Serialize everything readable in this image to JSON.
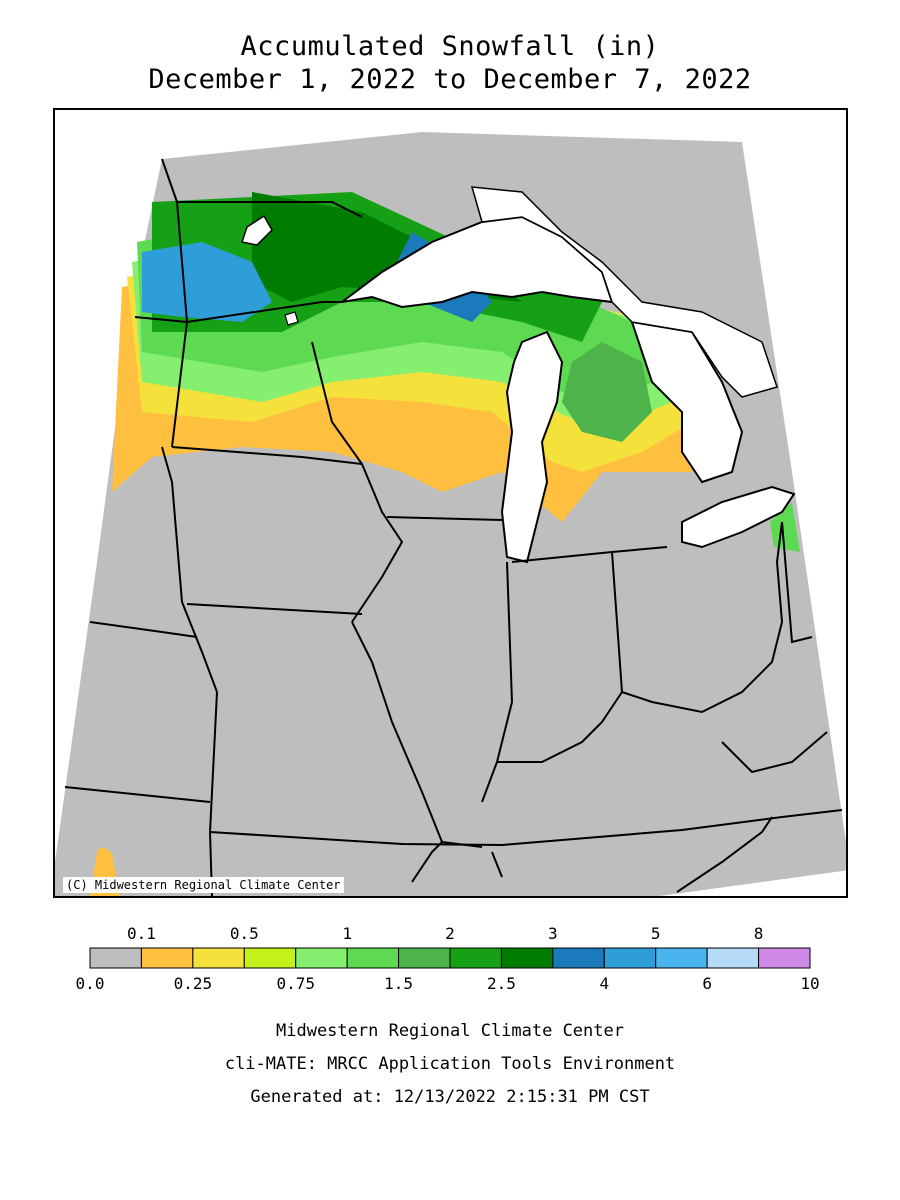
{
  "title_line1": "Accumulated Snowfall (in)",
  "title_line2": "December 1, 2022 to December 7, 2022",
  "copyright": "(C) Midwestern Regional Climate Center",
  "legend": {
    "upper_labels": [
      "0.1",
      "0.5",
      "1",
      "2",
      "3",
      "5",
      "8"
    ],
    "lower_labels": [
      "0.0",
      "0.25",
      "0.75",
      "1.5",
      "2.5",
      "4",
      "6",
      "10"
    ],
    "colors": [
      "#bebebe",
      "#ffbf3f",
      "#f5e13c",
      "#c3f21a",
      "#86ef70",
      "#5dd952",
      "#4db34a",
      "#16a016",
      "#007d00",
      "#1a7abb",
      "#2e9ed8",
      "#4ab4ee",
      "#b4daf8",
      "#cf8ae8"
    ]
  },
  "footer": {
    "line1": "Midwestern Regional Climate Center",
    "line2": "cli-MATE: MRCC Application Tools Environment",
    "line3": "Generated at: 12/13/2022 2:15:31 PM CST"
  }
}
